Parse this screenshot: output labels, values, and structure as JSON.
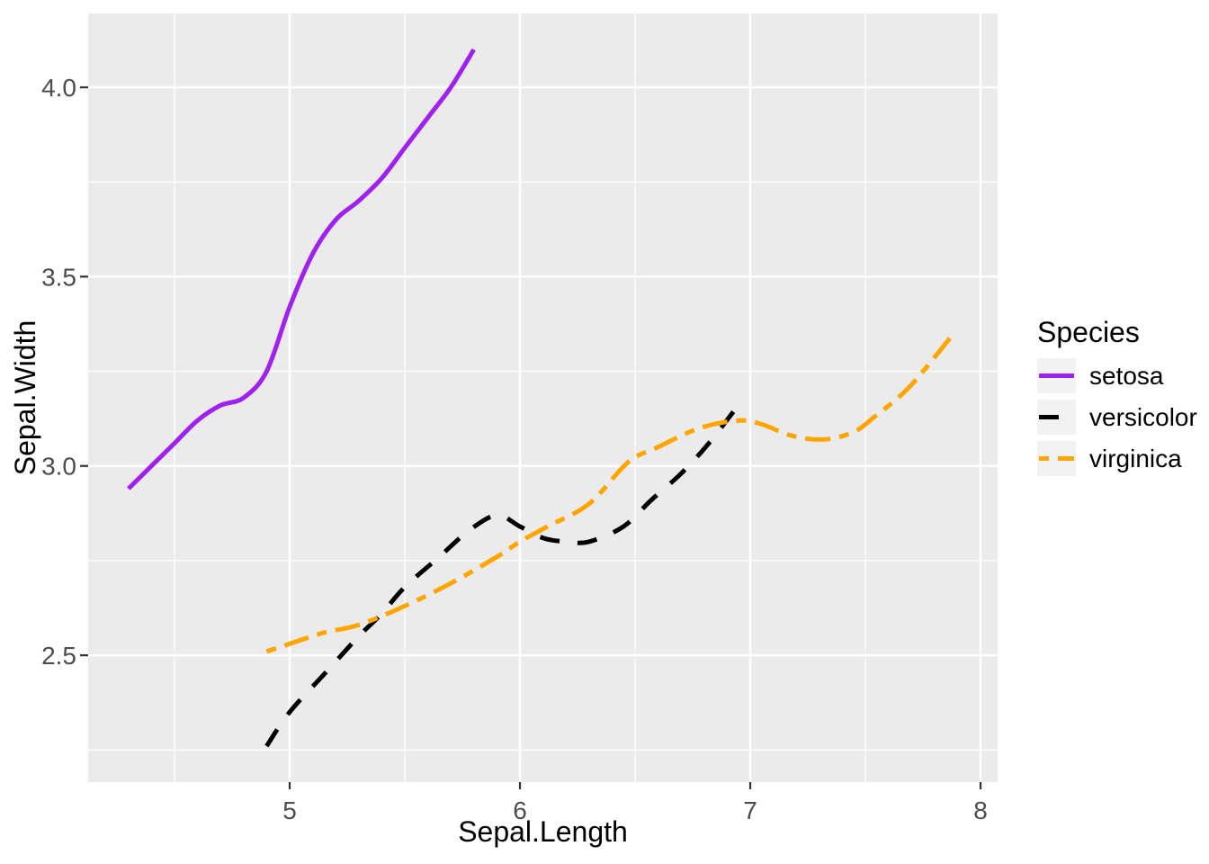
{
  "chart_data": {
    "type": "line",
    "xlabel": "Sepal.Length",
    "ylabel": "Sepal.Width",
    "legend": {
      "title": "Species",
      "position": "right"
    },
    "axes": {
      "x": {
        "range": [
          4.125,
          8.074
        ],
        "ticks": [
          {
            "value": 5,
            "label": "5"
          },
          {
            "value": 6,
            "label": "6"
          },
          {
            "value": 7,
            "label": "7"
          },
          {
            "value": 8,
            "label": "8"
          }
        ],
        "minor": [
          4.5,
          5.5,
          6.5,
          7.5
        ],
        "grid": true
      },
      "y": {
        "range": [
          2.165,
          4.195
        ],
        "ticks": [
          {
            "value": 2.5,
            "label": "2.5"
          },
          {
            "value": 3.0,
            "label": "3.0"
          },
          {
            "value": 3.5,
            "label": "3.5"
          },
          {
            "value": 4.0,
            "label": "4.0"
          }
        ],
        "minor": [
          2.25,
          2.75,
          3.25,
          3.75
        ],
        "grid": true
      }
    },
    "colors": {
      "panel_bg": "#EBEBEB",
      "grid": "#FFFFFF",
      "tick_label": "#4D4D4D",
      "tick_mark": "#333333",
      "legend_key_bg": "#F2F2F2"
    },
    "series": [
      {
        "name": "setosa",
        "color": "#A020F0",
        "linetype": "solid",
        "points": [
          [
            4.3,
            2.94
          ],
          [
            4.4,
            3.0
          ],
          [
            4.5,
            3.06
          ],
          [
            4.6,
            3.12
          ],
          [
            4.7,
            3.16
          ],
          [
            4.8,
            3.18
          ],
          [
            4.9,
            3.25
          ],
          [
            5.0,
            3.42
          ],
          [
            5.1,
            3.56
          ],
          [
            5.2,
            3.65
          ],
          [
            5.3,
            3.7
          ],
          [
            5.4,
            3.76
          ],
          [
            5.5,
            3.84
          ],
          [
            5.6,
            3.92
          ],
          [
            5.7,
            4.0
          ],
          [
            5.8,
            4.1
          ]
        ]
      },
      {
        "name": "versicolor",
        "color": "#000000",
        "linetype": "dashed",
        "points": [
          [
            4.9,
            2.26
          ],
          [
            5.0,
            2.35
          ],
          [
            5.15,
            2.45
          ],
          [
            5.3,
            2.55
          ],
          [
            5.4,
            2.61
          ],
          [
            5.5,
            2.68
          ],
          [
            5.65,
            2.76
          ],
          [
            5.78,
            2.83
          ],
          [
            5.9,
            2.87
          ],
          [
            6.0,
            2.84
          ],
          [
            6.1,
            2.81
          ],
          [
            6.2,
            2.8
          ],
          [
            6.3,
            2.8
          ],
          [
            6.45,
            2.84
          ],
          [
            6.57,
            2.91
          ],
          [
            6.7,
            2.98
          ],
          [
            6.82,
            3.06
          ],
          [
            6.96,
            3.17
          ]
        ]
      },
      {
        "name": "virginica",
        "color": "#FFA500",
        "linetype": "twodash",
        "points": [
          [
            4.9,
            2.51
          ],
          [
            5.0,
            2.53
          ],
          [
            5.15,
            2.56
          ],
          [
            5.3,
            2.58
          ],
          [
            5.5,
            2.63
          ],
          [
            5.7,
            2.69
          ],
          [
            5.9,
            2.76
          ],
          [
            6.0,
            2.8
          ],
          [
            6.12,
            2.84
          ],
          [
            6.3,
            2.9
          ],
          [
            6.47,
            3.01
          ],
          [
            6.6,
            3.05
          ],
          [
            6.78,
            3.1
          ],
          [
            6.95,
            3.12
          ],
          [
            7.05,
            3.11
          ],
          [
            7.18,
            3.08
          ],
          [
            7.32,
            3.07
          ],
          [
            7.45,
            3.09
          ],
          [
            7.54,
            3.13
          ],
          [
            7.66,
            3.19
          ],
          [
            7.75,
            3.25
          ],
          [
            7.87,
            3.34
          ]
        ]
      }
    ]
  }
}
